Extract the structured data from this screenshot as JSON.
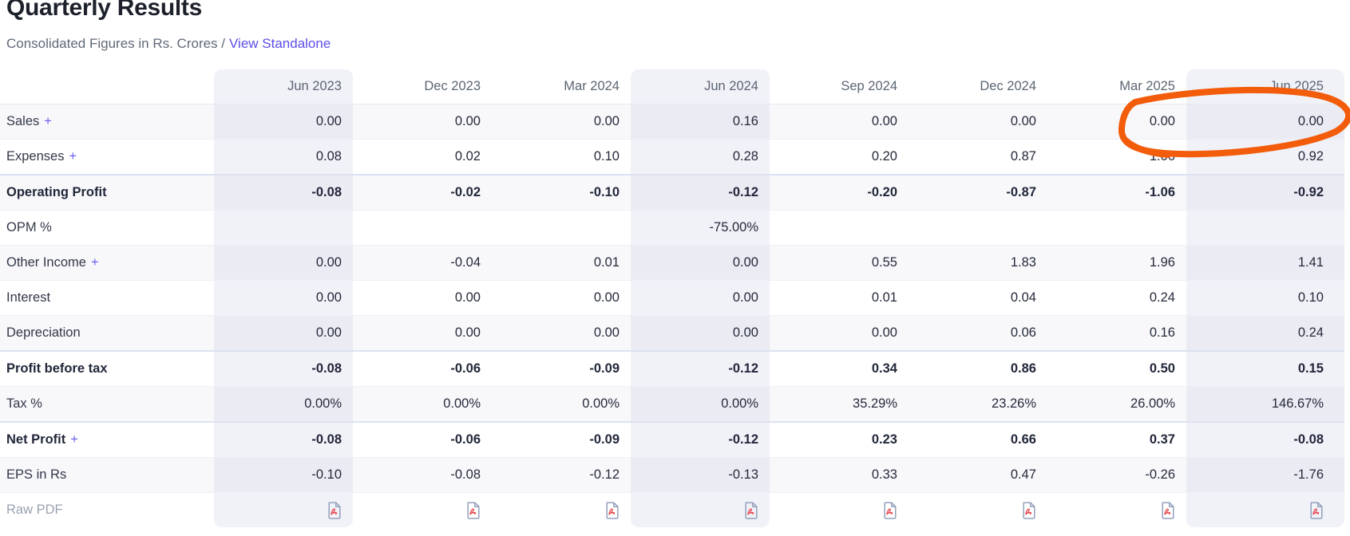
{
  "header": {
    "title": "Quarterly Results",
    "subtitle_prefix": "Consolidated Figures in Rs. Crores /",
    "standalone_link_label": "View Standalone"
  },
  "table": {
    "columns": [
      "Jun 2023",
      "Dec 2023",
      "Mar 2024",
      "Jun 2024",
      "Sep 2024",
      "Dec 2024",
      "Mar 2025",
      "Jun 2025"
    ],
    "highlighted_columns": [
      0,
      3,
      7
    ],
    "expand_symbol": "+",
    "rows": [
      {
        "label": "Sales",
        "expandable": true,
        "bold": false,
        "values": [
          "0.00",
          "0.00",
          "0.00",
          "0.16",
          "0.00",
          "0.00",
          "0.00",
          "0.00"
        ]
      },
      {
        "label": "Expenses",
        "expandable": true,
        "bold": false,
        "values": [
          "0.08",
          "0.02",
          "0.10",
          "0.28",
          "0.20",
          "0.87",
          "1.06",
          "0.92"
        ]
      },
      {
        "label": "Operating Profit",
        "expandable": false,
        "bold": true,
        "strong_border": true,
        "values": [
          "-0.08",
          "-0.02",
          "-0.10",
          "-0.12",
          "-0.20",
          "-0.87",
          "-1.06",
          "-0.92"
        ]
      },
      {
        "label": "OPM %",
        "expandable": false,
        "bold": false,
        "values": [
          "",
          "",
          "",
          "-75.00%",
          "",
          "",
          "",
          ""
        ]
      },
      {
        "label": "Other Income",
        "expandable": true,
        "bold": false,
        "values": [
          "0.00",
          "-0.04",
          "0.01",
          "0.00",
          "0.55",
          "1.83",
          "1.96",
          "1.41"
        ]
      },
      {
        "label": "Interest",
        "expandable": false,
        "bold": false,
        "values": [
          "0.00",
          "0.00",
          "0.00",
          "0.00",
          "0.01",
          "0.04",
          "0.24",
          "0.10"
        ]
      },
      {
        "label": "Depreciation",
        "expandable": false,
        "bold": false,
        "values": [
          "0.00",
          "0.00",
          "0.00",
          "0.00",
          "0.00",
          "0.06",
          "0.16",
          "0.24"
        ]
      },
      {
        "label": "Profit before tax",
        "expandable": false,
        "bold": true,
        "strong_border": true,
        "values": [
          "-0.08",
          "-0.06",
          "-0.09",
          "-0.12",
          "0.34",
          "0.86",
          "0.50",
          "0.15"
        ]
      },
      {
        "label": "Tax %",
        "expandable": false,
        "bold": false,
        "values": [
          "0.00%",
          "0.00%",
          "0.00%",
          "0.00%",
          "35.29%",
          "23.26%",
          "26.00%",
          "146.67%"
        ]
      },
      {
        "label": "Net Profit",
        "expandable": true,
        "bold": true,
        "strong_border": true,
        "values": [
          "-0.08",
          "-0.06",
          "-0.09",
          "-0.12",
          "0.23",
          "0.66",
          "0.37",
          "-0.08"
        ]
      },
      {
        "label": "EPS in Rs",
        "expandable": false,
        "bold": false,
        "values": [
          "-0.10",
          "-0.08",
          "-0.12",
          "-0.13",
          "0.33",
          "0.47",
          "-0.26",
          "-1.76"
        ]
      }
    ],
    "raw_pdf_row": {
      "label": "Raw PDF",
      "icon": "pdf-file-icon"
    }
  },
  "annotation": {
    "shape": "hand-drawn-circle",
    "color": "#f25c0a",
    "circled_cells": "Sales row: Mar 2025 and Jun 2025 values"
  },
  "colors": {
    "accent_purple": "#5c4fe9",
    "annotation_orange": "#f25c0a",
    "pdf_icon_gray": "#93a1bb",
    "pdf_icon_red": "#e5484d",
    "striped_row_bg": "#f8f8fb",
    "highlight_col_bg": "#f1f1f8"
  }
}
